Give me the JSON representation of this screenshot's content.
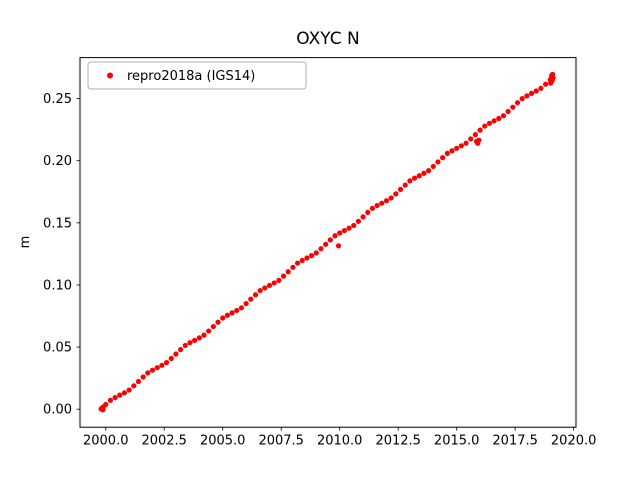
{
  "figure": {
    "title": "OXYC N",
    "ylabel": "m"
  },
  "legend": {
    "label": "repro2018a (IGS14)",
    "marker_color": "#ff0000"
  },
  "chart_data": {
    "type": "scatter",
    "title": "OXYC N",
    "xlabel": "",
    "ylabel": "m",
    "grid": false,
    "legend_position": "upper left",
    "point_color": "#ff0000",
    "xlim": [
      1998.9,
      2020.1
    ],
    "ylim": [
      -0.0145,
      0.283
    ],
    "x_ticks": [
      2000.0,
      2002.5,
      2005.0,
      2007.5,
      2010.0,
      2012.5,
      2015.0,
      2017.5,
      2020.0
    ],
    "x_tick_labels": [
      "2000.0",
      "2002.5",
      "2005.0",
      "2007.5",
      "2010.0",
      "2012.5",
      "2015.0",
      "2017.5",
      "2020.0"
    ],
    "y_ticks": [
      0.0,
      0.05,
      0.1,
      0.15,
      0.2,
      0.25
    ],
    "y_tick_labels": [
      "0.00",
      "0.05",
      "0.10",
      "0.15",
      "0.20",
      "0.25"
    ],
    "series": [
      {
        "name": "repro2018a (IGS14)",
        "color": "#ff0000",
        "x": [
          1999.8,
          2000.0,
          2000.2,
          2000.4,
          2000.6,
          2000.8,
          2001.0,
          2001.2,
          2001.4,
          2001.6,
          2001.8,
          2002.0,
          2002.2,
          2002.4,
          2002.6,
          2002.8,
          2003.0,
          2003.2,
          2003.4,
          2003.6,
          2003.8,
          2004.0,
          2004.2,
          2004.4,
          2004.6,
          2004.8,
          2005.0,
          2005.2,
          2005.4,
          2005.6,
          2005.8,
          2006.0,
          2006.2,
          2006.4,
          2006.6,
          2006.8,
          2007.0,
          2007.2,
          2007.4,
          2007.6,
          2007.8,
          2008.0,
          2008.2,
          2008.4,
          2008.6,
          2008.8,
          2009.0,
          2009.2,
          2009.4,
          2009.6,
          2009.8,
          2010.0,
          2010.2,
          2010.4,
          2010.6,
          2010.8,
          2011.0,
          2011.2,
          2011.4,
          2011.6,
          2011.8,
          2012.0,
          2012.2,
          2012.4,
          2012.6,
          2012.8,
          2013.0,
          2013.2,
          2013.4,
          2013.6,
          2013.8,
          2014.0,
          2014.2,
          2014.4,
          2014.6,
          2014.8,
          2015.0,
          2015.2,
          2015.4,
          2015.6,
          2015.8,
          2016.0,
          2016.2,
          2016.4,
          2016.6,
          2016.8,
          2017.0,
          2017.2,
          2017.4,
          2017.6,
          2017.8,
          2018.0,
          2018.2,
          2018.4,
          2018.6,
          2018.8,
          2019.0,
          1999.85,
          1999.88,
          1999.9,
          2009.95,
          2015.85,
          2015.9,
          2015.95,
          2019.02,
          2019.04,
          2019.06,
          2019.08,
          2019.1,
          2019.12
        ],
        "y": [
          0.0002,
          0.0038,
          0.0072,
          0.0093,
          0.0113,
          0.0132,
          0.0154,
          0.0188,
          0.0223,
          0.0259,
          0.0292,
          0.0314,
          0.0334,
          0.0353,
          0.0375,
          0.0408,
          0.0444,
          0.048,
          0.0513,
          0.0535,
          0.0554,
          0.0574,
          0.0596,
          0.0629,
          0.0665,
          0.07,
          0.0734,
          0.0756,
          0.0775,
          0.0795,
          0.0816,
          0.085,
          0.0886,
          0.0921,
          0.0955,
          0.0976,
          0.0996,
          0.1016,
          0.1037,
          0.1071,
          0.1106,
          0.1142,
          0.1176,
          0.1197,
          0.1217,
          0.1236,
          0.1258,
          0.1292,
          0.1327,
          0.1363,
          0.1396,
          0.1418,
          0.1438,
          0.1457,
          0.1479,
          0.1512,
          0.1548,
          0.1584,
          0.1617,
          0.1639,
          0.1658,
          0.1678,
          0.17,
          0.1733,
          0.1769,
          0.1804,
          0.1838,
          0.186,
          0.1879,
          0.1899,
          0.192,
          0.1954,
          0.199,
          0.2025,
          0.2059,
          0.208,
          0.21,
          0.212,
          0.2141,
          0.2175,
          0.221,
          0.2246,
          0.2279,
          0.2301,
          0.2321,
          0.234,
          0.2362,
          0.2396,
          0.2431,
          0.2467,
          0.25,
          0.2522,
          0.2542,
          0.2561,
          0.2583,
          0.2616,
          0.2652,
          0.0012,
          -0.0005,
          0.0018,
          0.1315,
          0.2155,
          0.214,
          0.2165,
          0.2625,
          0.266,
          0.2685,
          0.2645,
          0.2695,
          0.2668
        ]
      }
    ]
  }
}
